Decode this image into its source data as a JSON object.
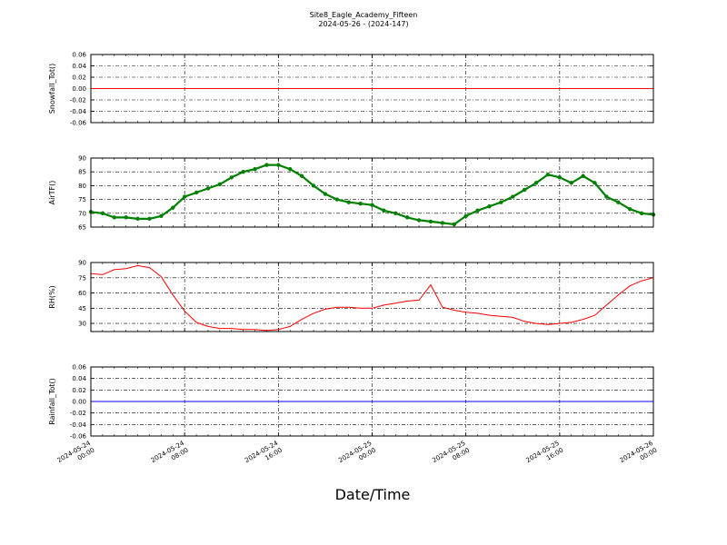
{
  "header": {
    "title": "Site8_Eagle_Academy_Fifteen",
    "subtitle": "2024-05-26 - (2024-147)"
  },
  "chart_data": {
    "type": "line",
    "title": "Site8_Eagle_Academy_Fifteen",
    "subtitle": "2024-05-26 - (2024-147)",
    "xlabel": "Date/Time",
    "x_range": [
      "2024-05-24 00:00",
      "2024-05-26 00:00"
    ],
    "x_ticks": [
      "2024-05-24 00:00",
      "2024-05-24 08:00",
      "2024-05-24 16:00",
      "2024-05-25 00:00",
      "2024-05-25 08:00",
      "2024-05-25 16:00",
      "2024-05-26 00:00"
    ],
    "x_tick_labels": [
      [
        "2024-05-24",
        "00:00"
      ],
      [
        "2024-05-24",
        "08:00"
      ],
      [
        "2024-05-24",
        "16:00"
      ],
      [
        "2024-05-25",
        "00:00"
      ],
      [
        "2024-05-25",
        "08:00"
      ],
      [
        "2024-05-25",
        "16:00"
      ],
      [
        "2024-05-26",
        "00:00"
      ]
    ],
    "grid": true,
    "panels": [
      {
        "ylabel": "Snowfall_Tot()",
        "ylim": [
          -0.06,
          0.06
        ],
        "yticks": [
          "0.06",
          "0.04",
          "0.02",
          "0.00",
          "-0.02",
          "-0.04",
          "-0.06"
        ],
        "series": [
          {
            "color": "#ff0000",
            "style": "line",
            "x": [
              0,
              48
            ],
            "y": [
              0,
              0
            ]
          }
        ]
      },
      {
        "ylabel": "AirTF()",
        "ylim": [
          65,
          90
        ],
        "yticks": [
          "90",
          "85",
          "80",
          "75",
          "70",
          "65"
        ],
        "series": [
          {
            "color": "#008000",
            "style": "dots",
            "x": [
              0,
              1,
              2,
              3,
              4,
              5,
              6,
              7,
              8,
              9,
              10,
              11,
              12,
              13,
              14,
              15,
              16,
              17,
              18,
              19,
              20,
              21,
              22,
              23,
              24,
              25,
              26,
              27,
              28,
              29,
              30,
              31,
              32,
              33,
              34,
              35,
              36,
              37,
              38,
              39,
              40,
              41,
              42,
              43,
              44,
              45,
              46,
              47,
              48
            ],
            "y": [
              70.5,
              70,
              68.5,
              68.5,
              68,
              68,
              69,
              72,
              76,
              77.5,
              79,
              80.5,
              83,
              85,
              86,
              87.5,
              87.5,
              86,
              83.5,
              80,
              77,
              75,
              74,
              73.5,
              73,
              71,
              70,
              68.5,
              67.5,
              67,
              66.5,
              66,
              69,
              71,
              72.5,
              74,
              76,
              78.5,
              81,
              84,
              83,
              81,
              83.5,
              81,
              76,
              74,
              71.5,
              70,
              69.5
            ]
          }
        ]
      },
      {
        "ylabel": "RH(%)",
        "ylim": [
          22,
          90
        ],
        "yticks": [
          "90",
          "75",
          "60",
          "45",
          "30"
        ],
        "series": [
          {
            "color": "#ff0000",
            "style": "line",
            "x": [
              0,
              1,
              2,
              3,
              4,
              5,
              6,
              7,
              8,
              9,
              10,
              11,
              12,
              13,
              14,
              15,
              16,
              17,
              18,
              19,
              20,
              21,
              22,
              23,
              24,
              25,
              26,
              27,
              28,
              29,
              30,
              31,
              32,
              33,
              34,
              35,
              36,
              37,
              38,
              39,
              40,
              41,
              42,
              43,
              44,
              45,
              46,
              47,
              48
            ],
            "y": [
              79,
              78,
              83,
              84,
              87,
              85,
              76,
              58,
              42,
              31,
              27,
              25,
              25,
              24,
              24,
              23,
              24,
              27,
              34,
              40,
              44,
              46,
              46,
              45,
              45,
              48,
              50,
              52,
              53,
              68,
              46,
              43,
              41,
              40,
              38,
              37,
              36,
              32,
              30,
              29,
              30,
              31,
              34,
              38,
              48,
              58,
              67,
              72,
              75
            ]
          }
        ]
      },
      {
        "ylabel": "Rainfall_Tot()",
        "ylim": [
          -0.06,
          0.06
        ],
        "yticks": [
          "0.06",
          "0.04",
          "0.02",
          "0.00",
          "-0.02",
          "-0.04",
          "-0.06"
        ],
        "series": [
          {
            "color": "#0000ff",
            "style": "line",
            "x": [
              0,
              48
            ],
            "y": [
              0,
              0
            ]
          }
        ]
      }
    ]
  }
}
